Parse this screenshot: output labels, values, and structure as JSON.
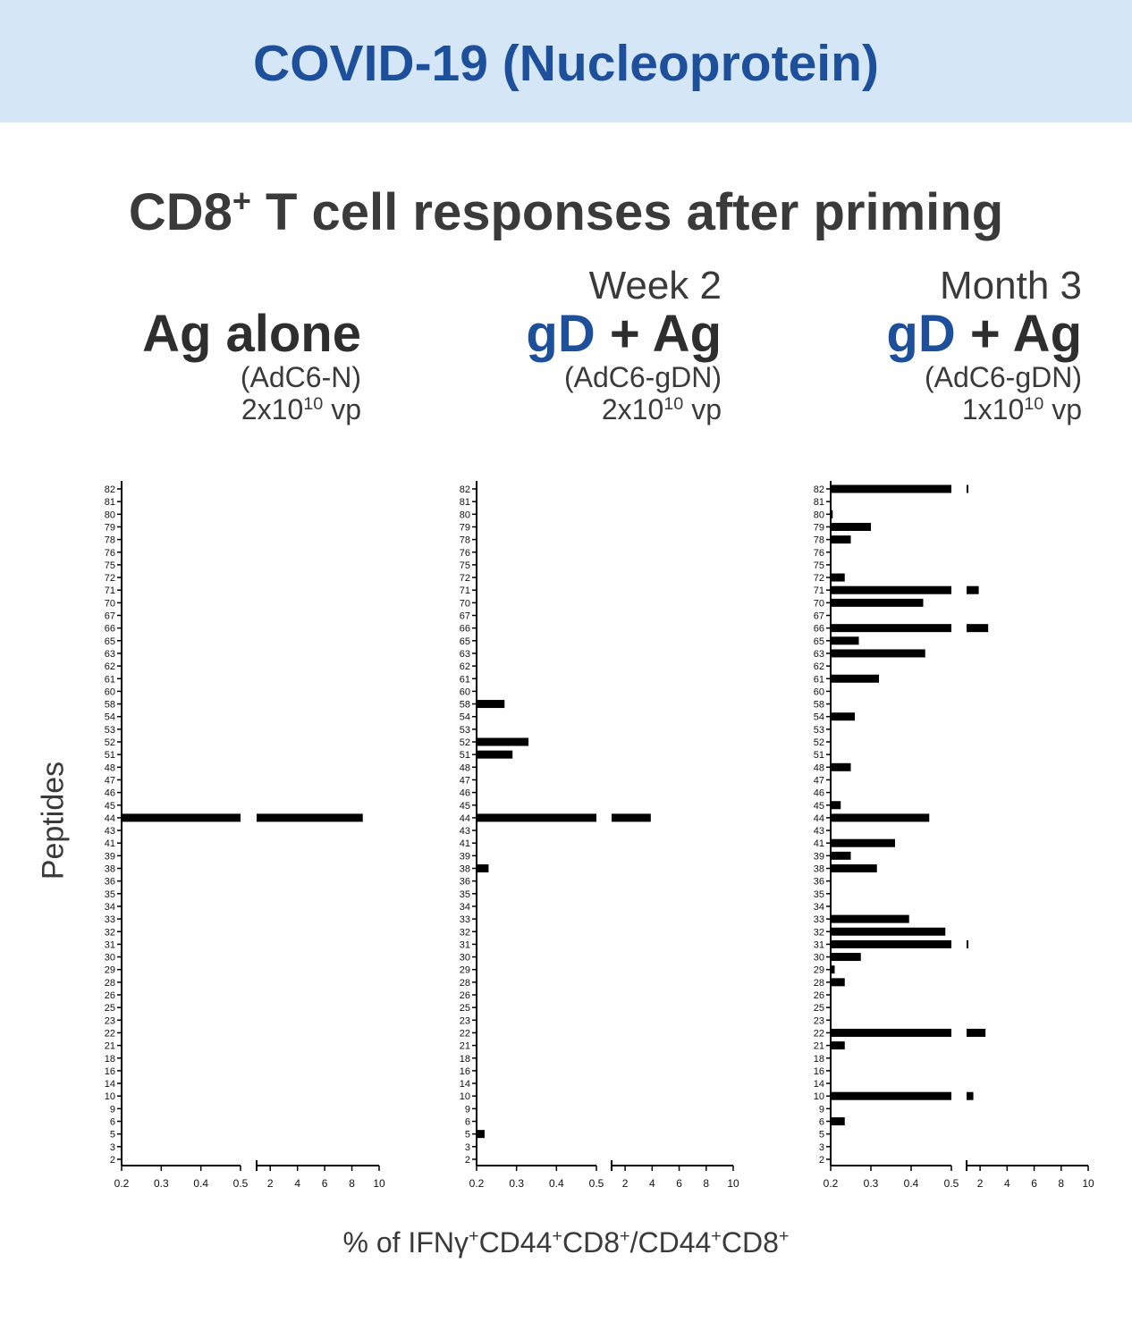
{
  "banner": {
    "title": "COVID-19 (Nucleoprotein)"
  },
  "heading": {
    "text": "CD8",
    "sup": "+",
    "rest": " T cell responses after priming"
  },
  "panels": [
    {
      "timepoint": "",
      "prefix": "",
      "rest": "Ag alone",
      "construct": "(AdC6-N)",
      "dose_base": "2x10",
      "dose_exp": "10",
      "dose_unit": " vp"
    },
    {
      "timepoint": "Week 2",
      "prefix": "gD",
      "rest": " + Ag",
      "construct": "(AdC6-gDN)",
      "dose_base": "2x10",
      "dose_exp": "10",
      "dose_unit": " vp"
    },
    {
      "timepoint": "Month 3",
      "prefix": "gD",
      "rest": " + Ag",
      "construct": "(AdC6-gDN)",
      "dose_base": "1x10",
      "dose_exp": "10",
      "dose_unit": " vp"
    }
  ],
  "axes": {
    "ylabel": "Peptides",
    "xlabel_parts": [
      {
        "t": "% of IFNγ",
        "s": false
      },
      {
        "t": "+",
        "s": true
      },
      {
        "t": "CD44",
        "s": false
      },
      {
        "t": "+",
        "s": true
      },
      {
        "t": "CD8",
        "s": false
      },
      {
        "t": "+",
        "s": true
      },
      {
        "t": "/CD44",
        "s": false
      },
      {
        "t": "+",
        "s": true
      },
      {
        "t": "CD8",
        "s": false
      },
      {
        "t": "+",
        "s": true
      }
    ]
  },
  "colors": {
    "banner_bg": "#d5e6f6",
    "brand_blue": "#1d4f9a",
    "bar": "#000000",
    "text": "#3a3a3a"
  },
  "chart_data": {
    "type": "bar",
    "orientation": "horizontal",
    "categories": [
      "82",
      "81",
      "80",
      "79",
      "78",
      "76",
      "75",
      "72",
      "71",
      "70",
      "67",
      "66",
      "65",
      "63",
      "62",
      "61",
      "60",
      "58",
      "54",
      "53",
      "52",
      "51",
      "48",
      "47",
      "46",
      "45",
      "44",
      "43",
      "41",
      "39",
      "38",
      "36",
      "35",
      "34",
      "33",
      "32",
      "31",
      "30",
      "29",
      "28",
      "26",
      "25",
      "23",
      "22",
      "21",
      "18",
      "16",
      "14",
      "10",
      "9",
      "6",
      "5",
      "3",
      "2"
    ],
    "x_axis": {
      "broken": true,
      "segment1": {
        "ticks": [
          0.2,
          0.3,
          0.4,
          0.5
        ],
        "range": [
          0.2,
          0.5
        ]
      },
      "segment2": {
        "ticks": [
          2,
          4,
          6,
          8,
          10
        ],
        "range": [
          1,
          10
        ]
      }
    },
    "series": [
      {
        "values": {
          "44": 8.8
        }
      },
      {
        "values": {
          "58": 0.27,
          "52": 0.33,
          "51": 0.29,
          "44": 3.9,
          "38": 0.23,
          "5": 0.22
        }
      },
      {
        "values": {
          "82": 1.1,
          "80": 0.205,
          "79": 0.3,
          "78": 0.25,
          "72": 0.235,
          "71": 1.9,
          "70": 0.43,
          "66": 2.6,
          "65": 0.27,
          "63": 0.435,
          "61": 0.32,
          "54": 0.26,
          "48": 0.25,
          "45": 0.225,
          "44": 0.445,
          "41": 0.36,
          "39": 0.25,
          "38": 0.315,
          "33": 0.395,
          "32": 0.485,
          "31": 1.1,
          "30": 0.275,
          "29": 0.21,
          "28": 0.235,
          "22": 2.4,
          "21": 0.235,
          "10": 1.5,
          "6": 0.235
        }
      }
    ]
  }
}
